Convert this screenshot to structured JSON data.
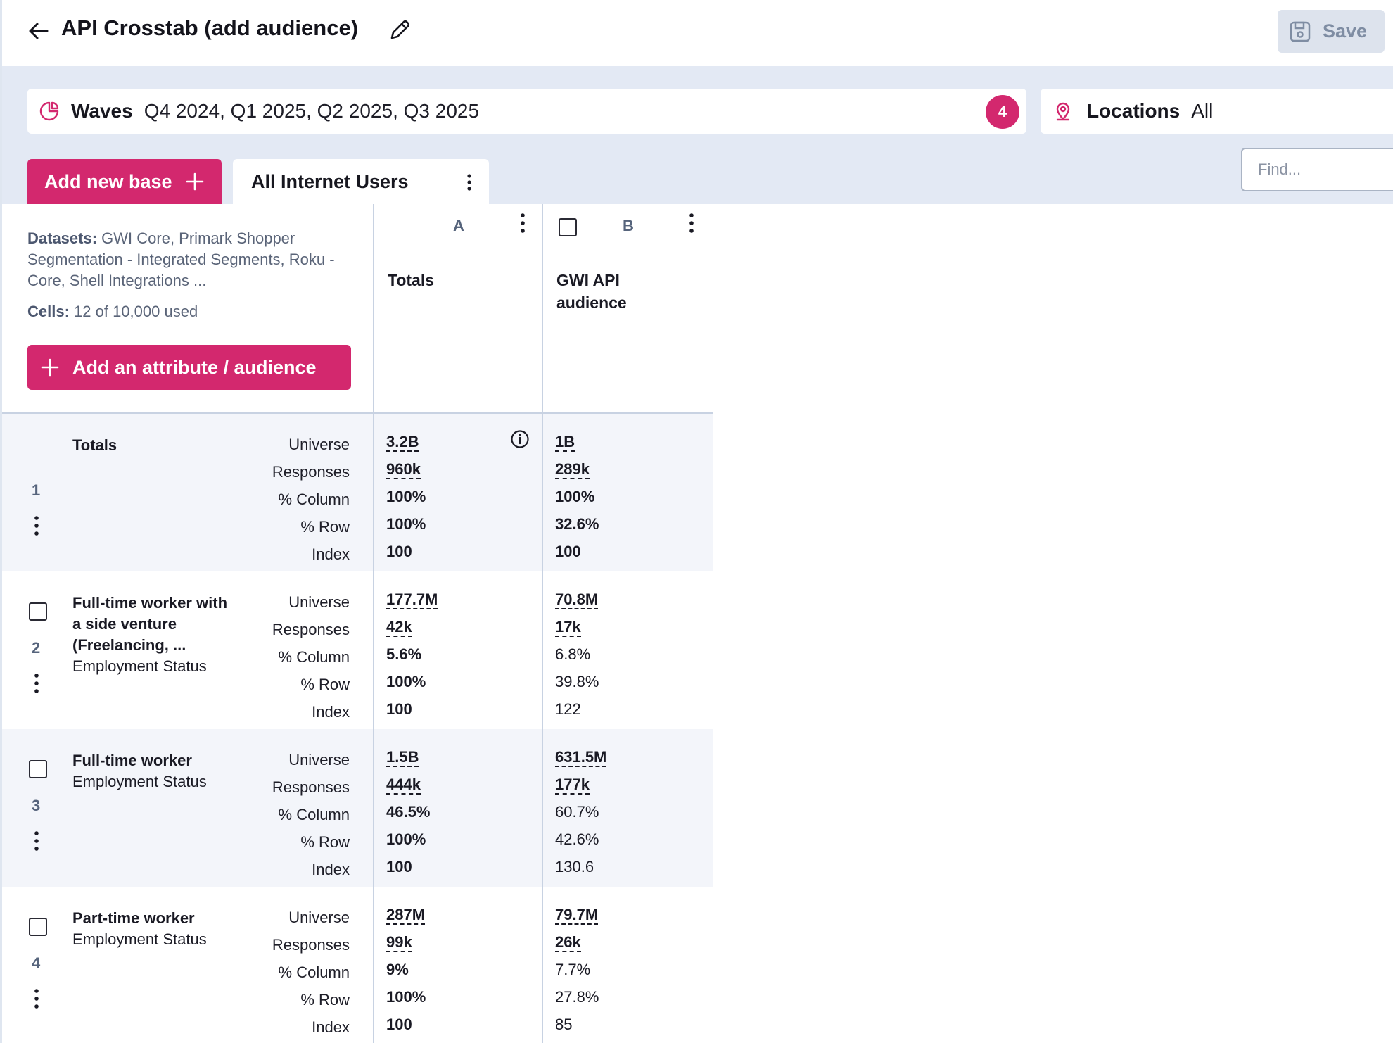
{
  "header": {
    "title": "API Crosstab (add audience)",
    "save_label": "Save"
  },
  "filters": {
    "waves_label": "Waves",
    "waves_value": "Q4 2024, Q1 2025, Q2 2025, Q3 2025",
    "waves_count": "4",
    "locations_label": "Locations",
    "locations_value": "All",
    "find_placeholder": "Find..."
  },
  "bases": {
    "add_label": "Add new base",
    "tabs": [
      {
        "label": "All Internet Users"
      }
    ]
  },
  "info_panel": {
    "datasets_label": "Datasets:",
    "datasets_value": "GWI Core, Primark Shopper Segmentation - Integrated Segments, Roku - Core, Shell Integrations ...",
    "cells_label": "Cells:",
    "cells_value": "12 of 10,000 used",
    "add_attr_label": "Add an attribute / audience"
  },
  "columns": [
    {
      "letter": "A",
      "title": "Totals"
    },
    {
      "letter": "B",
      "title": "GWI API audience"
    }
  ],
  "metric_labels": [
    "Universe",
    "Responses",
    "% Column",
    "% Row",
    "Index"
  ],
  "rows": [
    {
      "num": "1",
      "title": "Totals",
      "subtitle": "",
      "a": [
        "3.2B",
        "960k",
        "100%",
        "100%",
        "100"
      ],
      "b": [
        "1B",
        "289k",
        "100%",
        "32.6%",
        "100"
      ]
    },
    {
      "num": "2",
      "title": "Full-time worker with a side venture (Freelancing, ...",
      "subtitle": "Employment Status",
      "a": [
        "177.7M",
        "42k",
        "5.6%",
        "100%",
        "100"
      ],
      "b": [
        "70.8M",
        "17k",
        "6.8%",
        "39.8%",
        "122"
      ]
    },
    {
      "num": "3",
      "title": "Full-time worker",
      "subtitle": "Employment Status",
      "a": [
        "1.5B",
        "444k",
        "46.5%",
        "100%",
        "100"
      ],
      "b": [
        "631.5M",
        "177k",
        "60.7%",
        "42.6%",
        "130.6"
      ]
    },
    {
      "num": "4",
      "title": "Part-time worker",
      "subtitle": "Employment Status",
      "a": [
        "287M",
        "99k",
        "9%",
        "100%",
        "100"
      ],
      "b": [
        "79.7M",
        "26k",
        "7.7%",
        "27.8%",
        "85"
      ]
    }
  ],
  "colors": {
    "accent": "#d3286e",
    "band": "#e3e9f4",
    "save_bg": "#dde3ed"
  }
}
